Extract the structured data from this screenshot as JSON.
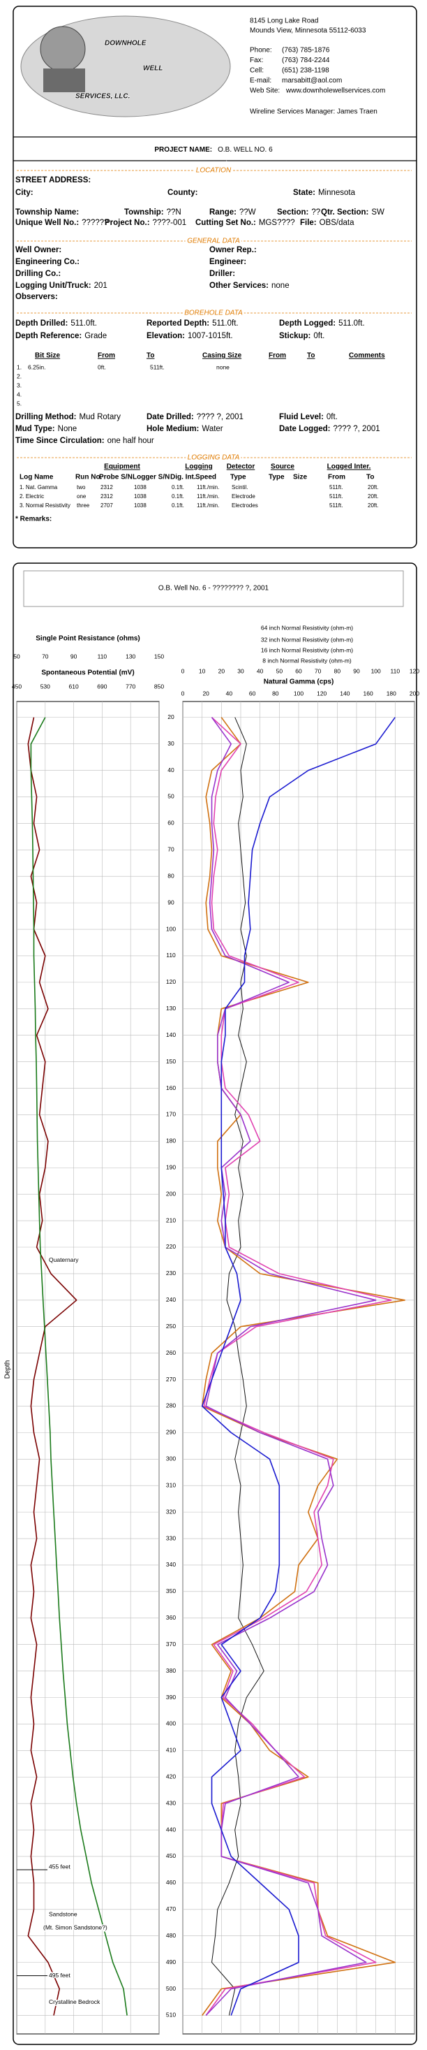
{
  "company": {
    "logo": [
      "DOWNHOLE",
      "WELL",
      "SERVICES, LLC."
    ],
    "address": [
      "8145 Long Lake Road",
      "Mounds View, Minnesota  55112-6033"
    ],
    "contacts": [
      {
        "label": "Phone:",
        "value": "(763) 785-1876"
      },
      {
        "label": "Fax:",
        "value": "(763) 784-2244"
      },
      {
        "label": "Cell:",
        "value": "(651) 238-1198"
      },
      {
        "label": "E-mail:",
        "value": "marsabitt@aol.com"
      },
      {
        "label": "Web Site:",
        "value": "www.downholewellservices.com"
      }
    ],
    "manager": "Wireline Services Manager: James Traen"
  },
  "project": {
    "label": "PROJECT NAME:",
    "value": "O.B. WELL NO. 6"
  },
  "location": {
    "title": "LOCATION",
    "rows": [
      [
        {
          "label": "STREET ADDRESS:"
        }
      ],
      [
        {
          "label": "City:"
        },
        {
          "label": "County:"
        },
        {
          "label": "State:",
          "value": "Minnesota"
        }
      ],
      [
        {
          "label": "Township Name:"
        },
        {
          "label": "Township:",
          "value": "??N"
        },
        {
          "label": "Range:",
          "value": "??W"
        },
        {
          "label": "Section:",
          "value": "??"
        },
        {
          "label": "Qtr. Section:",
          "value": "SW"
        }
      ],
      [
        {
          "label": "Unique Well No.:",
          "value": "??????"
        },
        {
          "label": "Project No.:",
          "value": "????-001"
        },
        {
          "label": "Cutting Set No.:",
          "value": "MGS????"
        },
        {
          "label": "File:",
          "value": "OBS/data"
        }
      ]
    ]
  },
  "general": {
    "title": "GENERAL DATA",
    "rows": [
      [
        {
          "label": "Well Owner:"
        },
        {
          "label": "Owner Rep.:"
        }
      ],
      [
        {
          "label": "Engineering Co.:"
        },
        {
          "label": "Engineer:"
        }
      ],
      [
        {
          "label": "Drilling Co.:"
        },
        {
          "label": "Driller:"
        }
      ],
      [
        {
          "label": "Logging Unit/Truck:",
          "value": "201"
        },
        {
          "label": "Other Services:",
          "value": "none"
        }
      ],
      [
        {
          "label": "Observers:"
        }
      ]
    ]
  },
  "borehole": {
    "title": "BOREHOLE DATA",
    "rows": [
      [
        {
          "label": "Depth Drilled:",
          "value": "511.0ft."
        },
        {
          "label": "Reported Depth:",
          "value": "511.0ft."
        },
        {
          "label": "Depth Logged:",
          "value": "511.0ft."
        }
      ],
      [
        {
          "label": "Depth Reference:",
          "value": "Grade"
        },
        {
          "label": "Elevation:",
          "value": "1007-1015ft."
        },
        {
          "label": "Stickup:",
          "value": "0ft."
        }
      ]
    ],
    "bit_table": {
      "columns": [
        "Bit Size",
        "From",
        "To",
        "Casing Size",
        "From",
        "To",
        "Comments"
      ],
      "rows": [
        [
          "1.",
          "6.25in.",
          "0ft.",
          "511ft.",
          "none"
        ],
        [
          "2."
        ],
        [
          "3."
        ],
        [
          "4."
        ],
        [
          "5."
        ]
      ]
    },
    "drilling": [
      [
        {
          "label": "Drilling Method:",
          "value": "Mud Rotary"
        },
        {
          "label": "Date Drilled:",
          "value": "???? ?, 2001"
        },
        {
          "label": "Fluid Level:",
          "value": "0ft."
        }
      ],
      [
        {
          "label": "Mud Type:",
          "value": "None"
        },
        {
          "label": "Hole Medium:",
          "value": "Water"
        },
        {
          "label": "Date Logged:",
          "value": "???? ?, 2001"
        }
      ],
      [
        {
          "label": "Time Since Circulation:",
          "value": "one half hour"
        }
      ]
    ]
  },
  "logging": {
    "title": "LOGGING DATA",
    "groups": [
      "Equipment",
      "Logging",
      "Detector",
      "Source",
      "Logged Inter."
    ],
    "columns": [
      "Log Name",
      "Run No.",
      "Probe S/N",
      "Logger S/N",
      "Dig. Int.",
      "Speed",
      "Type",
      "Type",
      "Size",
      "From",
      "To"
    ],
    "rows": [
      [
        "1. Nat. Gamma",
        "two",
        "2312",
        "1038",
        "0.1ft.",
        "11ft./min.",
        "Scintil.",
        "511ft.",
        "20ft."
      ],
      [
        "2. Electric",
        "one",
        "2312",
        "1038",
        "0.1ft.",
        "11ft./min.",
        "Electrode",
        "511ft.",
        "20ft."
      ],
      [
        "3. Normal Resistivity",
        "three",
        "2707",
        "1038",
        "0.1ft.",
        "11ft./min.",
        "Electrodes",
        "511ft.",
        "20ft."
      ]
    ],
    "remarks": "* Remarks:"
  },
  "chart_data": {
    "type": "line",
    "title": "O.B. Well No. 6 - ???????? ?, 2001",
    "y_label": "Depth",
    "depth": [
      20,
      30,
      40,
      50,
      60,
      70,
      80,
      90,
      100,
      110,
      120,
      130,
      140,
      150,
      160,
      170,
      180,
      190,
      200,
      210,
      220,
      230,
      240,
      250,
      260,
      270,
      280,
      290,
      300,
      310,
      320,
      330,
      340,
      350,
      360,
      370,
      380,
      390,
      400,
      410,
      420,
      430,
      440,
      450,
      460,
      470,
      480,
      490,
      500,
      510
    ],
    "ylim": [
      14,
      517
    ],
    "yticks": [
      20,
      30,
      40,
      50,
      60,
      70,
      80,
      90,
      100,
      110,
      120,
      130,
      140,
      150,
      160,
      170,
      180,
      190,
      200,
      210,
      220,
      230,
      240,
      250,
      260,
      270,
      280,
      290,
      300,
      310,
      320,
      330,
      340,
      350,
      360,
      370,
      380,
      390,
      400,
      410,
      420,
      430,
      440,
      450,
      460,
      470,
      480,
      490,
      500,
      510
    ],
    "grid": true,
    "axes": [
      {
        "label": "Single Point Resistance (ohms)",
        "color": "#c00000",
        "lim": [
          50,
          150
        ],
        "ticks": [
          50,
          70,
          90,
          110,
          130,
          150
        ]
      },
      {
        "label": "Spontaneous Potential (mV)",
        "color": "#006600",
        "lim": [
          450,
          850
        ],
        "ticks": [
          450,
          530,
          610,
          690,
          770,
          850
        ]
      },
      {
        "color": "#000000",
        "lim": [
          0,
          120
        ],
        "ticks": [
          0,
          10,
          20,
          30,
          40,
          50,
          60,
          70,
          80,
          90,
          100,
          110,
          120
        ]
      },
      {
        "label": "Natural Gamma (cps)",
        "color": "#000000",
        "lim": [
          0,
          200
        ],
        "ticks": [
          0,
          20,
          40,
          60,
          80,
          100,
          120,
          140,
          160,
          180,
          200
        ]
      }
    ],
    "series": [
      {
        "axis": 0,
        "color": "#7a0000",
        "values": [
          62,
          58,
          60,
          64,
          62,
          66,
          60,
          64,
          62,
          70,
          66,
          72,
          64,
          70,
          68,
          66,
          72,
          70,
          66,
          68,
          64,
          74,
          92,
          70,
          66,
          62,
          60,
          62,
          66,
          64,
          62,
          64,
          60,
          62,
          60,
          64,
          62,
          60,
          62,
          60,
          64,
          60,
          62,
          60,
          62,
          62,
          58,
          72,
          80,
          76
        ]
      },
      {
        "axis": 1,
        "color": "#1a7a1a",
        "values": [
          530,
          490,
          490,
          492,
          494,
          495,
          496,
          497,
          498,
          498,
          500,
          502,
          503,
          505,
          506,
          507,
          508,
          510,
          512,
          514,
          516,
          520,
          524,
          528,
          532,
          536,
          540,
          544,
          546,
          550,
          554,
          558,
          562,
          566,
          570,
          575,
          580,
          586,
          592,
          600,
          608,
          618,
          630,
          645,
          660,
          680,
          700,
          720,
          750,
          760
        ]
      },
      {
        "axis": 2,
        "name": "64 inch Normal Resistivity (ohm-m)",
        "color": "#1a1ad0",
        "values": [
          110,
          100,
          65,
          45,
          40,
          36,
          35,
          34,
          35,
          32,
          32,
          22,
          22,
          20,
          20,
          20,
          20,
          20,
          21,
          22,
          22,
          28,
          30,
          25,
          20,
          15,
          10,
          25,
          45,
          50,
          50,
          50,
          50,
          48,
          40,
          20,
          30,
          20,
          25,
          30,
          15,
          15,
          20,
          25,
          40,
          55,
          60,
          60,
          30,
          25
        ]
      },
      {
        "axis": 2,
        "name": "32 inch Normal Resistivity (ohm-m)",
        "color": "#9932cc",
        "values": [
          15,
          25,
          18,
          15,
          15,
          16,
          15,
          14,
          15,
          22,
          55,
          22,
          18,
          18,
          20,
          30,
          35,
          20,
          22,
          20,
          22,
          45,
          100,
          35,
          18,
          15,
          12,
          40,
          75,
          78,
          70,
          72,
          75,
          68,
          45,
          18,
          28,
          22,
          35,
          48,
          60,
          22,
          20,
          20,
          65,
          70,
          72,
          95,
          25,
          12
        ]
      },
      {
        "axis": 2,
        "name": "16 inch Normal Resistivity (ohm-m)",
        "color": "#e040b0",
        "values": [
          15,
          30,
          20,
          17,
          16,
          18,
          16,
          15,
          16,
          24,
          60,
          22,
          20,
          20,
          22,
          34,
          40,
          22,
          24,
          22,
          24,
          50,
          108,
          38,
          18,
          14,
          11,
          42,
          78,
          75,
          68,
          70,
          72,
          64,
          42,
          16,
          26,
          21,
          36,
          48,
          63,
          21,
          20,
          20,
          68,
          70,
          74,
          100,
          22,
          12
        ]
      },
      {
        "axis": 2,
        "name": "8 inch Normal Resistivity (ohm-m)",
        "color": "#d07010",
        "values": [
          20,
          30,
          15,
          12,
          14,
          15,
          14,
          12,
          13,
          20,
          65,
          20,
          18,
          18,
          20,
          30,
          18,
          18,
          20,
          18,
          22,
          40,
          115,
          30,
          15,
          12,
          10,
          40,
          80,
          70,
          65,
          70,
          60,
          58,
          40,
          15,
          25,
          20,
          35,
          45,
          65,
          20,
          20,
          20,
          70,
          70,
          75,
          110,
          20,
          10
        ]
      },
      {
        "axis": 3,
        "color": "#111111",
        "values": [
          45,
          55,
          50,
          52,
          48,
          50,
          52,
          54,
          50,
          55,
          50,
          52,
          48,
          55,
          50,
          45,
          52,
          48,
          52,
          48,
          50,
          40,
          38,
          45,
          48,
          52,
          55,
          50,
          45,
          50,
          48,
          50,
          52,
          50,
          48,
          60,
          70,
          55,
          48,
          45,
          48,
          50,
          45,
          48,
          40,
          30,
          28,
          25,
          45,
          40
        ]
      }
    ],
    "annotations": [
      "Quaternary",
      "455 feet",
      "Sandstone",
      "(Mt. Simon Sandstone?)",
      "495 feet",
      "Crystalline Bedrock"
    ]
  }
}
